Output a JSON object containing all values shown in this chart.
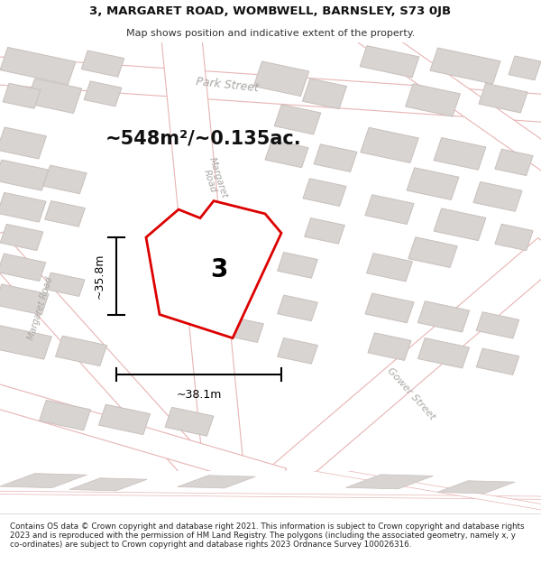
{
  "title_line1": "3, MARGARET ROAD, WOMBWELL, BARNSLEY, S73 0JB",
  "title_line2": "Map shows position and indicative extent of the property.",
  "area_text": "~548m²/~0.135ac.",
  "width_text": "~38.1m",
  "height_text": "~35.8m",
  "plot_number": "3",
  "footer_text": "Contains OS data © Crown copyright and database right 2021. This information is subject to Crown copyright and database rights 2023 and is reproduced with the permission of HM Land Registry. The polygons (including the associated geometry, namely x, y co-ordinates) are subject to Crown copyright and database rights 2023 Ordnance Survey 100026316.",
  "map_bg": "#f5f3f1",
  "road_fill": "#f0e8e8",
  "road_edge": "#e8b4b4",
  "building_fill": "#d8d4d2",
  "building_edge": "#c8c0bc",
  "plot_fill": "#ffffff",
  "plot_edge": "#dd0000",
  "plot_edge_width": 2.0,
  "street_label_color": "#aaa8a4",
  "dim_color": "#000000",
  "number_color": "#000000",
  "title_fontsize": 9.5,
  "subtitle_fontsize": 8.0,
  "area_fontsize": 15,
  "dim_fontsize": 9,
  "plot_num_fontsize": 20,
  "footer_fontsize": 6.3,
  "street_fontsize": 9
}
